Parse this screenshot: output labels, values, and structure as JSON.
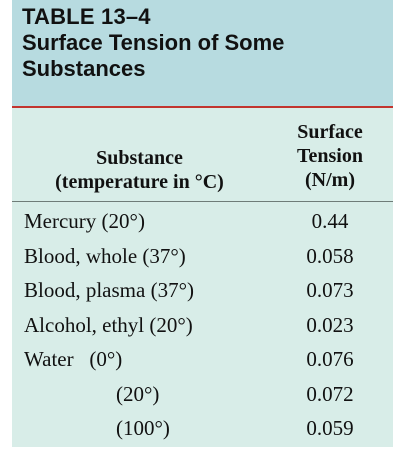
{
  "table": {
    "label": "TABLE 13–4",
    "title_line1": "Surface Tension of Some",
    "title_line2": "Substances",
    "columns": {
      "substance_line1": "Substance",
      "substance_line2": "(temperature in °C)",
      "tension_line1": "Surface",
      "tension_line2": "Tension",
      "tension_line3": "(N/m)"
    },
    "rows": [
      {
        "substance": "Mercury (20°)",
        "value": "0.44"
      },
      {
        "substance": "Blood, whole (37°)",
        "value": "0.058"
      },
      {
        "substance": "Blood, plasma (37°)",
        "value": "0.073"
      },
      {
        "substance": "Alcohol, ethyl (20°)",
        "value": "0.023"
      },
      {
        "substance": "Water   (0°)",
        "value": "0.076"
      },
      {
        "substance": "(20°)",
        "value": "0.072"
      },
      {
        "substance": "(100°)",
        "value": "0.059"
      }
    ]
  },
  "colors": {
    "title_band": "#b7dbe0",
    "body_background": "#d8ede8",
    "accent_rule": "#c2342f"
  }
}
